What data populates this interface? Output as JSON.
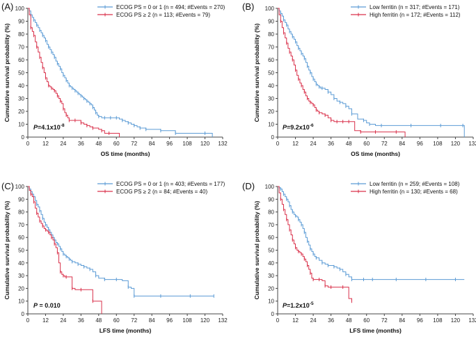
{
  "chart_data": [
    {
      "type": "line",
      "panel_label": "(A)",
      "xlabel": "OS time (months)",
      "ylabel": "Cumulative survival probability (%)",
      "xlim": [
        0,
        132
      ],
      "ylim": [
        0,
        100
      ],
      "xticks": [
        0,
        12,
        24,
        36,
        48,
        60,
        72,
        84,
        96,
        108,
        120,
        132
      ],
      "yticks": [
        0,
        10,
        20,
        30,
        40,
        50,
        60,
        70,
        80,
        90,
        100
      ],
      "pvalue": {
        "prefix": "P",
        "text": "=4.1x10",
        "sup": "-8"
      },
      "series": [
        {
          "name": "ECOG PS = 0 or 1 (n = 494; #Events = 270)",
          "color": "#5b9bd5",
          "x": [
            0,
            1,
            2,
            3,
            4,
            5,
            6,
            7,
            8,
            9,
            10,
            11,
            12,
            13,
            14,
            15,
            16,
            17,
            18,
            19,
            20,
            21,
            22,
            23,
            24,
            25,
            26,
            27,
            28,
            29,
            30,
            31,
            32,
            33,
            34,
            35,
            36,
            37,
            38,
            39,
            40,
            41,
            42,
            43,
            44,
            45,
            46,
            47,
            48,
            50,
            52,
            54,
            56,
            58,
            60,
            62,
            64,
            66,
            68,
            70,
            72,
            74,
            76,
            78,
            80,
            85,
            90,
            95,
            100,
            110,
            120,
            125
          ],
          "y": [
            100,
            98,
            95,
            93,
            91,
            89,
            87,
            85,
            83,
            81,
            79,
            77,
            75,
            72,
            70,
            68,
            66,
            64,
            62,
            59,
            57,
            55,
            53,
            50,
            48,
            46,
            44,
            42,
            40,
            39,
            38,
            37,
            36,
            35,
            34,
            33,
            32,
            31,
            30,
            29,
            28,
            27,
            26,
            25,
            23,
            21,
            19,
            17,
            16,
            15,
            15,
            15,
            15,
            15,
            15,
            14,
            13,
            12,
            11,
            10,
            9,
            8,
            7,
            7,
            6,
            6,
            5,
            5,
            3,
            3,
            3,
            0
          ]
        },
        {
          "name": "ECOG PS ≥ 2 (n = 113; #Events = 79)",
          "color": "#d9304a",
          "x": [
            0,
            1,
            2,
            3,
            4,
            5,
            6,
            7,
            8,
            9,
            10,
            11,
            12,
            13,
            14,
            15,
            16,
            17,
            18,
            19,
            20,
            21,
            22,
            23,
            24,
            25,
            26,
            27,
            28,
            30,
            32,
            34,
            36,
            38,
            40,
            42,
            44,
            48,
            50,
            52,
            55,
            60,
            62
          ],
          "y": [
            100,
            95,
            85,
            82,
            79,
            74,
            70,
            66,
            62,
            58,
            54,
            50,
            46,
            43,
            40,
            39,
            38,
            37,
            36,
            34,
            32,
            30,
            28,
            26,
            22,
            19,
            17,
            15,
            13,
            13,
            13,
            13,
            11,
            10,
            9,
            8,
            7,
            6,
            5,
            3,
            3,
            3,
            0
          ]
        }
      ]
    },
    {
      "type": "line",
      "panel_label": "(B)",
      "xlabel": "OS time (months)",
      "ylabel": "Cumulative survival probability (%)",
      "xlim": [
        0,
        132
      ],
      "ylim": [
        0,
        100
      ],
      "xticks": [
        0,
        12,
        24,
        36,
        48,
        60,
        72,
        84,
        96,
        108,
        120,
        132
      ],
      "yticks": [
        0,
        10,
        20,
        30,
        40,
        50,
        60,
        70,
        80,
        90,
        100
      ],
      "pvalue": {
        "prefix": "P",
        "text": "=9.2x10",
        "sup": "-6"
      },
      "series": [
        {
          "name": "Low ferritin (n = 317; #Events = 171)",
          "color": "#5b9bd5",
          "x": [
            0,
            1,
            2,
            3,
            4,
            5,
            6,
            7,
            8,
            9,
            10,
            11,
            12,
            13,
            14,
            15,
            16,
            17,
            18,
            19,
            20,
            21,
            22,
            23,
            24,
            25,
            26,
            27,
            28,
            29,
            30,
            32,
            34,
            36,
            38,
            40,
            42,
            44,
            46,
            48,
            50,
            54,
            58,
            60,
            62,
            66,
            70,
            80,
            90,
            100,
            110,
            120,
            125,
            126
          ],
          "y": [
            100,
            98,
            96,
            94,
            91,
            89,
            87,
            84,
            82,
            80,
            78,
            76,
            74,
            71,
            69,
            67,
            65,
            63,
            61,
            58,
            55,
            52,
            50,
            47,
            45,
            43,
            41,
            40,
            39,
            38,
            38,
            37,
            35,
            33,
            30,
            28,
            27,
            26,
            24,
            22,
            18,
            14,
            13,
            11,
            10,
            9,
            9,
            9,
            9,
            9,
            9,
            9,
            9,
            0
          ]
        },
        {
          "name": "High ferritin (n = 172; #Events = 112)",
          "color": "#d9304a",
          "x": [
            0,
            1,
            2,
            3,
            4,
            5,
            6,
            7,
            8,
            9,
            10,
            11,
            12,
            13,
            14,
            15,
            16,
            17,
            18,
            19,
            20,
            21,
            22,
            23,
            24,
            25,
            26,
            27,
            28,
            30,
            32,
            34,
            36,
            38,
            40,
            42,
            44,
            46,
            48,
            52,
            56,
            60,
            66,
            72,
            80,
            86
          ],
          "y": [
            100,
            95,
            90,
            85,
            81,
            77,
            73,
            69,
            66,
            63,
            60,
            56,
            52,
            48,
            45,
            42,
            40,
            37,
            35,
            32,
            30,
            28,
            27,
            26,
            25,
            23,
            21,
            20,
            19,
            18,
            17,
            15,
            13,
            12,
            12,
            12,
            12,
            12,
            12,
            5,
            4,
            4,
            4,
            4,
            4,
            0
          ]
        }
      ]
    },
    {
      "type": "line",
      "panel_label": "(C)",
      "xlabel": "LFS time (months)",
      "ylabel": "Cumulative survival probability (%)",
      "xlim": [
        0,
        132
      ],
      "ylim": [
        0,
        100
      ],
      "xticks": [
        0,
        12,
        24,
        36,
        48,
        60,
        72,
        84,
        96,
        108,
        120,
        132
      ],
      "yticks": [
        0,
        10,
        20,
        30,
        40,
        50,
        60,
        70,
        80,
        90,
        100
      ],
      "pvalue": {
        "prefix": "P",
        "text": " = 0.010",
        "sup": ""
      },
      "series": [
        {
          "name": "ECOG PS = 0 or 1 (n = 403; #Events = 177)",
          "color": "#5b9bd5",
          "x": [
            0,
            1,
            2,
            3,
            4,
            5,
            6,
            7,
            8,
            9,
            10,
            11,
            12,
            13,
            14,
            15,
            16,
            17,
            18,
            19,
            20,
            21,
            22,
            23,
            24,
            25,
            26,
            27,
            28,
            29,
            30,
            32,
            34,
            36,
            38,
            40,
            42,
            44,
            46,
            48,
            52,
            56,
            60,
            64,
            68,
            70,
            72,
            80,
            90,
            100,
            110,
            120,
            126
          ],
          "y": [
            100,
            98,
            96,
            94,
            92,
            89,
            86,
            84,
            81,
            78,
            75,
            72,
            70,
            68,
            66,
            64,
            62,
            60,
            58,
            56,
            55,
            53,
            51,
            49,
            47,
            46,
            45,
            44,
            43,
            42,
            41,
            40,
            39,
            38,
            37,
            36,
            35,
            33,
            30,
            28,
            27,
            27,
            27,
            26,
            21,
            20,
            14,
            14,
            14,
            14,
            14,
            14,
            14
          ]
        },
        {
          "name": "ECOG PS ≥ 2 (n = 84; #Events = 40)",
          "color": "#d9304a",
          "x": [
            0,
            1,
            2,
            3,
            4,
            5,
            6,
            7,
            8,
            9,
            10,
            11,
            12,
            13,
            14,
            15,
            16,
            17,
            18,
            19,
            20,
            21,
            22,
            23,
            24,
            25,
            26,
            28,
            30,
            32,
            36,
            40,
            44,
            48,
            50
          ],
          "y": [
            100,
            97,
            94,
            92,
            88,
            83,
            79,
            76,
            73,
            71,
            69,
            67,
            66,
            65,
            64,
            62,
            60,
            58,
            55,
            52,
            48,
            40,
            33,
            31,
            30,
            29,
            29,
            29,
            20,
            19,
            19,
            19,
            10,
            10,
            0
          ]
        }
      ]
    },
    {
      "type": "line",
      "panel_label": "(D)",
      "xlabel": "LFS time (months)",
      "ylabel": "Cumulative survival probability (%)",
      "xlim": [
        0,
        132
      ],
      "ylim": [
        0,
        100
      ],
      "xticks": [
        0,
        12,
        24,
        36,
        48,
        60,
        72,
        84,
        96,
        108,
        120,
        132
      ],
      "yticks": [
        0,
        10,
        20,
        30,
        40,
        50,
        60,
        70,
        80,
        90,
        100
      ],
      "pvalue": {
        "prefix": "P",
        "text": "=1.2x10",
        "sup": "-5"
      },
      "series": [
        {
          "name": "Low ferritin (n = 259; #Events = 108)",
          "color": "#5b9bd5",
          "x": [
            0,
            1,
            2,
            3,
            4,
            5,
            6,
            7,
            8,
            9,
            10,
            11,
            12,
            13,
            14,
            15,
            16,
            17,
            18,
            19,
            20,
            21,
            22,
            23,
            24,
            25,
            26,
            28,
            30,
            32,
            34,
            36,
            38,
            40,
            42,
            44,
            46,
            48,
            50,
            54,
            58,
            60,
            64,
            70,
            80,
            90,
            100,
            110,
            120,
            126
          ],
          "y": [
            100,
            99,
            98,
            96,
            94,
            92,
            90,
            88,
            85,
            82,
            80,
            78,
            77,
            76,
            74,
            72,
            70,
            67,
            64,
            60,
            57,
            54,
            51,
            49,
            47,
            45,
            44,
            42,
            40,
            39,
            38,
            38,
            37,
            36,
            35,
            33,
            31,
            29,
            27,
            27,
            27,
            27,
            27,
            27,
            27,
            27,
            27,
            27,
            27,
            27
          ]
        },
        {
          "name": "High ferritin (n = 130; #Events = 68)",
          "color": "#d9304a",
          "x": [
            0,
            1,
            2,
            3,
            4,
            5,
            6,
            7,
            8,
            9,
            10,
            11,
            12,
            13,
            14,
            15,
            16,
            17,
            18,
            19,
            20,
            21,
            22,
            23,
            24,
            26,
            28,
            30,
            32,
            34,
            36,
            40,
            44,
            48,
            50
          ],
          "y": [
            100,
            95,
            90,
            86,
            82,
            78,
            74,
            70,
            66,
            62,
            58,
            55,
            52,
            50,
            49,
            48,
            47,
            45,
            43,
            41,
            38,
            35,
            32,
            28,
            27,
            27,
            27,
            26,
            22,
            21,
            21,
            21,
            21,
            12,
            10
          ]
        }
      ]
    }
  ]
}
